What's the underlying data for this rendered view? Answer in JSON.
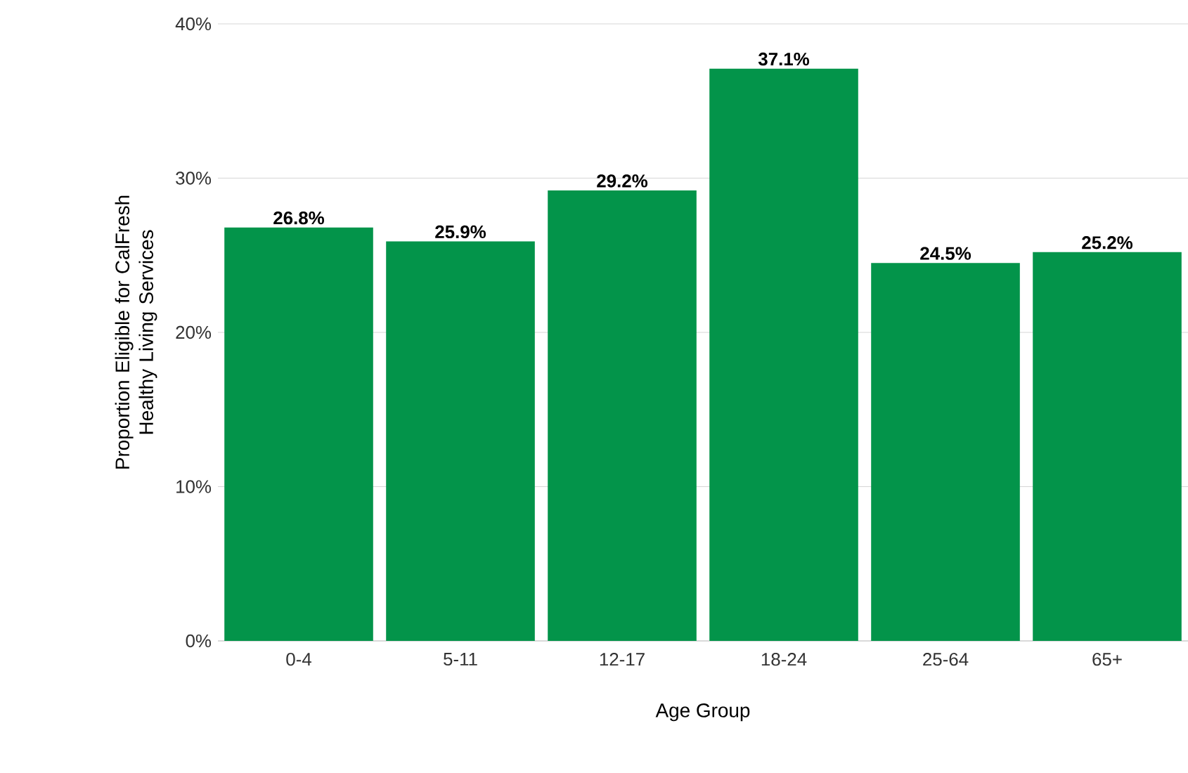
{
  "chart_data": {
    "type": "bar",
    "categories": [
      "0-4",
      "5-11",
      "12-17",
      "18-24",
      "25-64",
      "65+"
    ],
    "values": [
      26.8,
      25.9,
      29.2,
      37.1,
      24.5,
      25.2
    ],
    "value_labels": [
      "26.8%",
      "25.9%",
      "29.2%",
      "37.1%",
      "24.5%",
      "25.2%"
    ],
    "color": "#03944a",
    "xlabel": "Age Group",
    "ylabel": "Proportion Eligible for CalFresh Healthy Living Services",
    "ylim": [
      0,
      40
    ],
    "yticks": [
      {
        "value": 0,
        "label": "0%"
      },
      {
        "value": 10,
        "label": "10%"
      },
      {
        "value": 20,
        "label": "20%"
      },
      {
        "value": 30,
        "label": "30%"
      },
      {
        "value": 40,
        "label": "40%"
      }
    ],
    "grid": "y"
  }
}
